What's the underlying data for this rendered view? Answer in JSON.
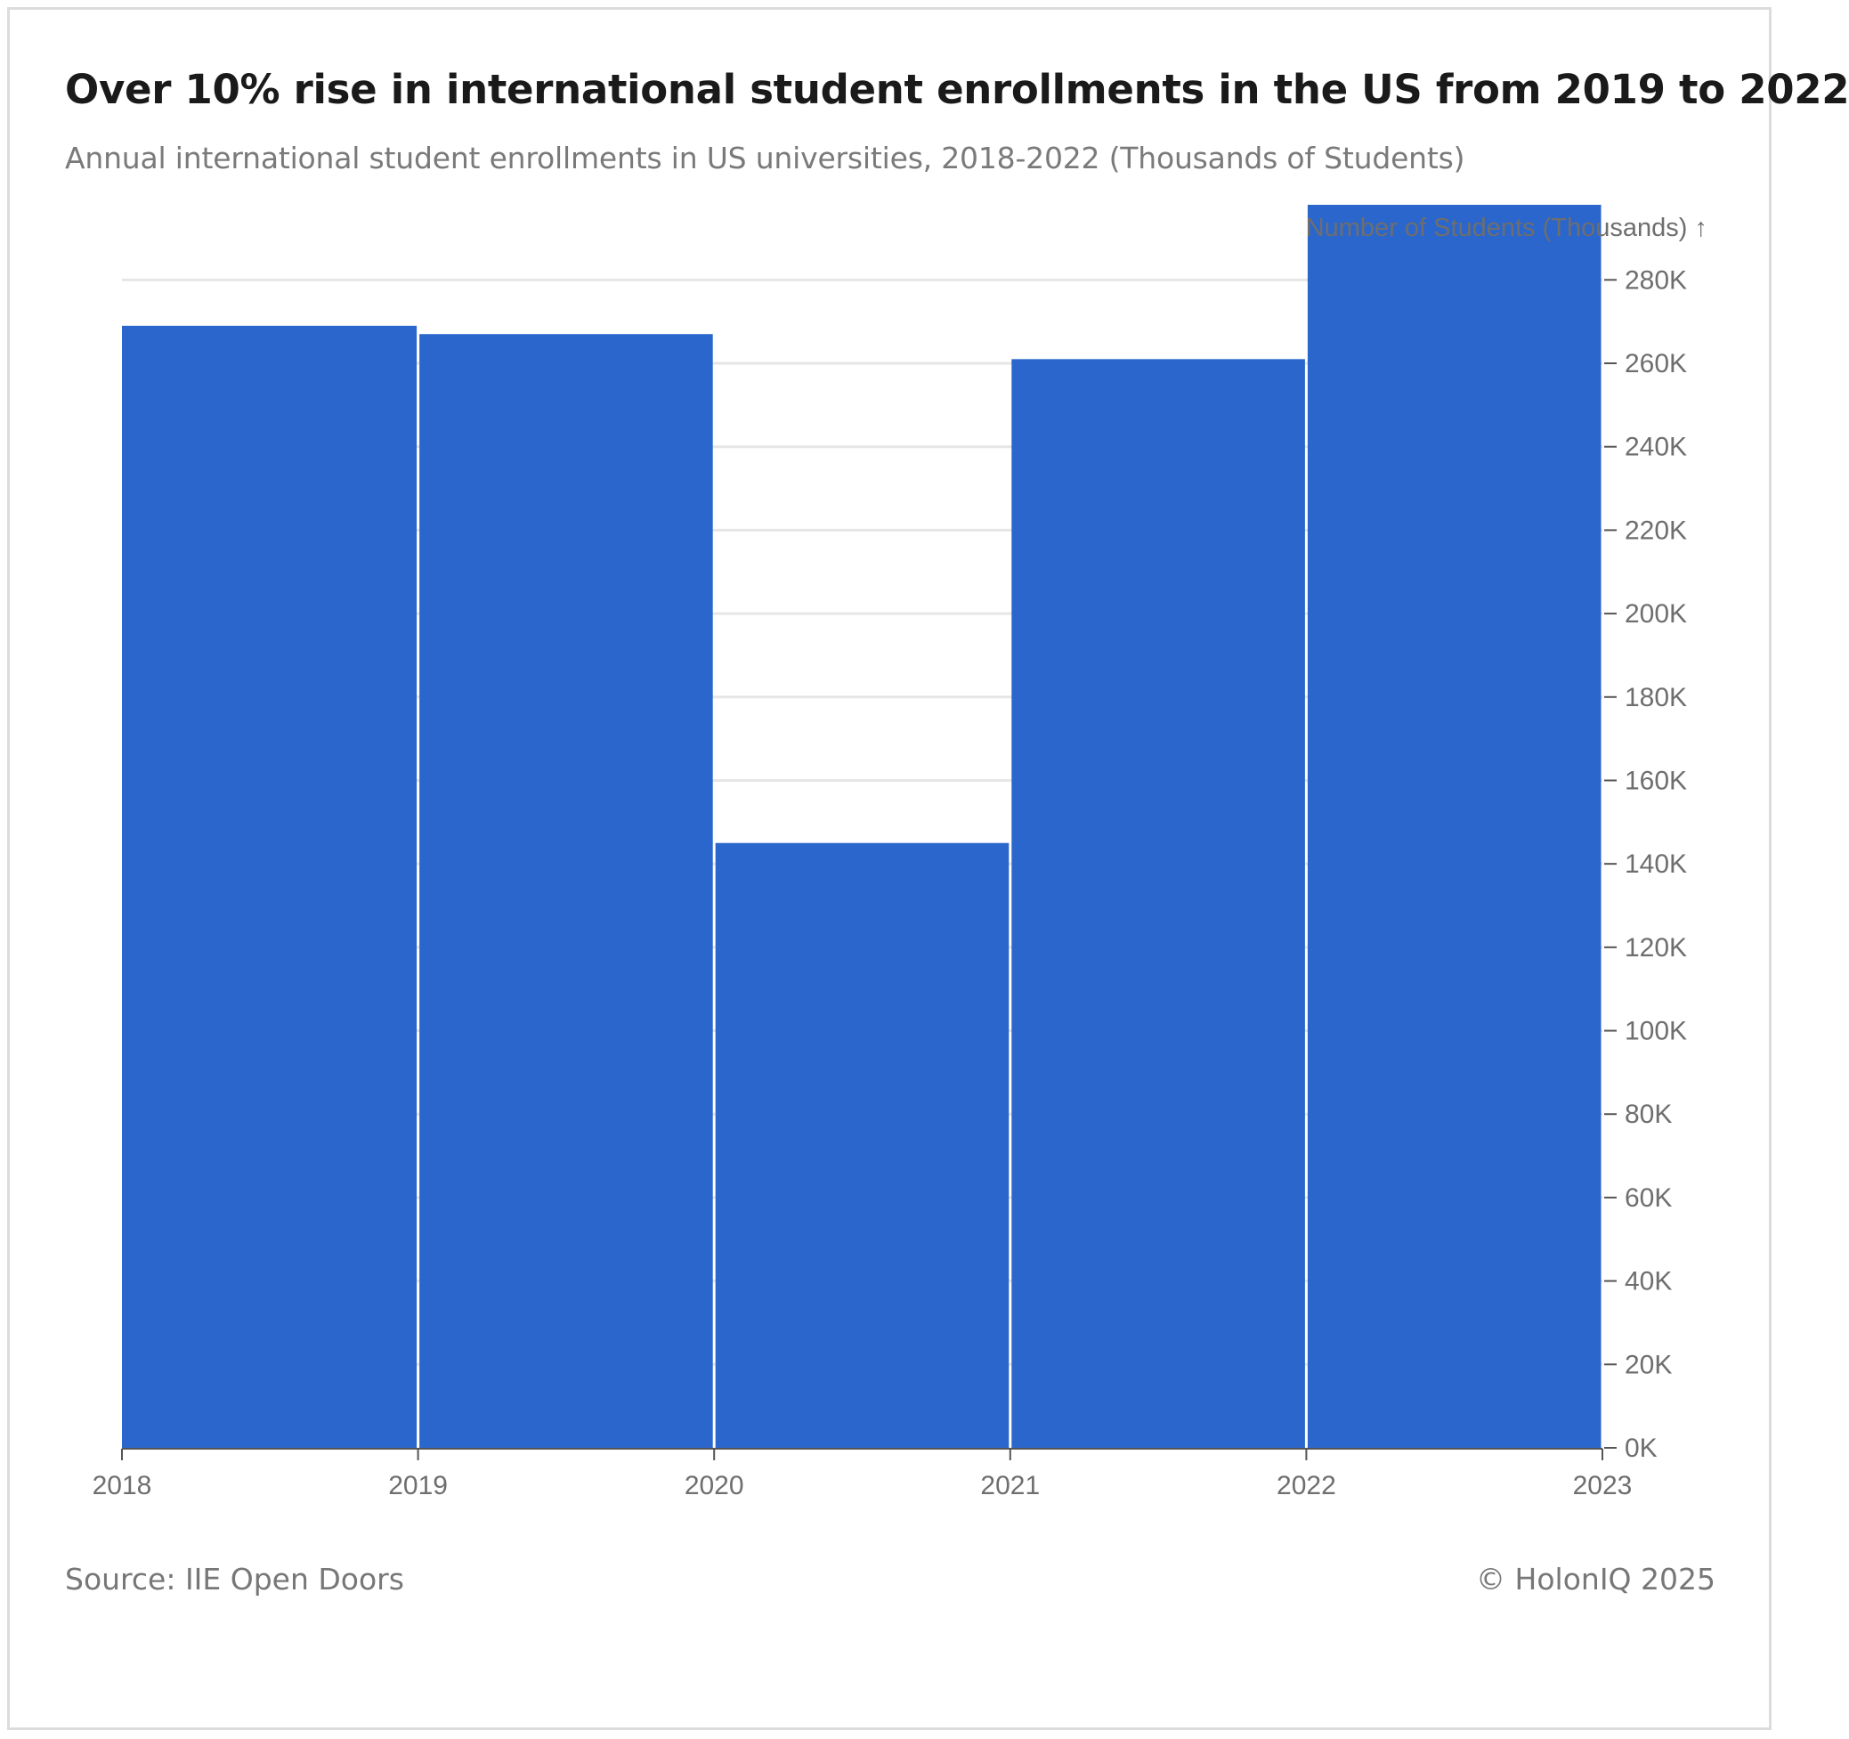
{
  "header": {
    "title": "Over 10% rise in international student enrollments in the US from 2019 to 2022",
    "subtitle": "Annual international student enrollments in US universities, 2018-2022 (Thousands of Students)"
  },
  "footer": {
    "source": "Source: IIE Open Doors",
    "credit": "© HolonIQ 2025"
  },
  "colors": {
    "bar": "#2b66cc",
    "grid": "#e6e6e6",
    "axis": "#555555"
  },
  "chart_data": {
    "type": "bar",
    "categories": [
      "2018",
      "2019",
      "2020",
      "2021",
      "2022"
    ],
    "bin_edges": [
      "2018",
      "2019",
      "2020",
      "2021",
      "2022",
      "2023"
    ],
    "values": [
      269,
      267,
      145,
      261,
      298
    ],
    "ylabel": "Number of Students (Thousands) ↑",
    "xlabel": "",
    "ylim": [
      0,
      298
    ],
    "yticks": [
      0,
      20,
      40,
      60,
      80,
      100,
      120,
      140,
      160,
      180,
      200,
      220,
      240,
      260,
      280
    ],
    "ytick_labels": [
      "0K",
      "20K",
      "40K",
      "60K",
      "80K",
      "100K",
      "120K",
      "140K",
      "160K",
      "180K",
      "200K",
      "220K",
      "240K",
      "260K",
      "280K"
    ],
    "y_axis_position": "right",
    "grid": true
  }
}
